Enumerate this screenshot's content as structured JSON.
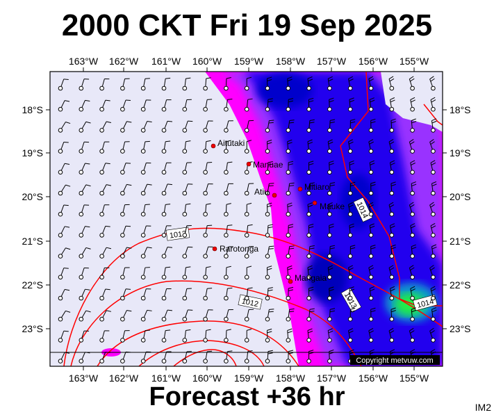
{
  "header": {
    "title": "2000 CKT Fri 19 Sep 2025"
  },
  "footer": {
    "subtitle": "Forecast +36 hr",
    "corner_tag": "IM2",
    "copyright": "Copyright metvuw.com"
  },
  "axes": {
    "lon_labels": [
      "163°W",
      "162°W",
      "161°W",
      "160°W",
      "159°W",
      "158°W",
      "157°W",
      "156°W",
      "155°W"
    ],
    "lat_labels": [
      "18°S",
      "19°S",
      "20°S",
      "21°S",
      "22°S",
      "23°S"
    ]
  },
  "places": [
    {
      "name": "Aitutaki"
    },
    {
      "name": "Manuae"
    },
    {
      "name": "Atiu"
    },
    {
      "name": "Mitiaro"
    },
    {
      "name": "Mauke"
    },
    {
      "name": "Rarotonga"
    },
    {
      "name": "Mangaia"
    }
  ],
  "isobars": [
    "1013",
    "1012",
    "1014",
    "1013",
    "1014"
  ],
  "colors": {
    "background": "#e8e8f8",
    "magenta": "#ff00ff",
    "purple": "#9933ff",
    "blue": "#2200ee",
    "deepblue": "#0000cc",
    "green": "#22ee44",
    "isobar": "#ff0000"
  }
}
